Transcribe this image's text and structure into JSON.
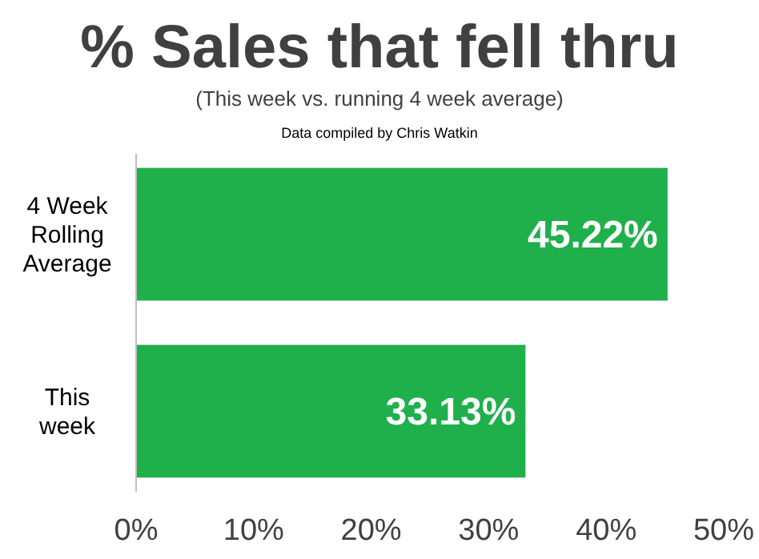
{
  "chart_data": {
    "type": "bar",
    "orientation": "horizontal",
    "title": "% Sales that fell thru",
    "subtitle": "(This week vs. running 4 week average)",
    "annotations": [
      "Data compiled by Chris Watkin"
    ],
    "categories": [
      "4 Week Rolling Average",
      "This week"
    ],
    "values": [
      45.22,
      33.13
    ],
    "value_labels": [
      "45.22%",
      "33.13%"
    ],
    "color": "#1fb04c",
    "xlim": [
      0,
      50
    ],
    "xticks": [
      {
        "value": 0,
        "label": "0%"
      },
      {
        "value": 10,
        "label": "10%"
      },
      {
        "value": 20,
        "label": "20%"
      },
      {
        "value": 30,
        "label": "30%"
      },
      {
        "value": 40,
        "label": "40%"
      },
      {
        "value": 50,
        "label": "50%"
      }
    ],
    "grid": false
  }
}
